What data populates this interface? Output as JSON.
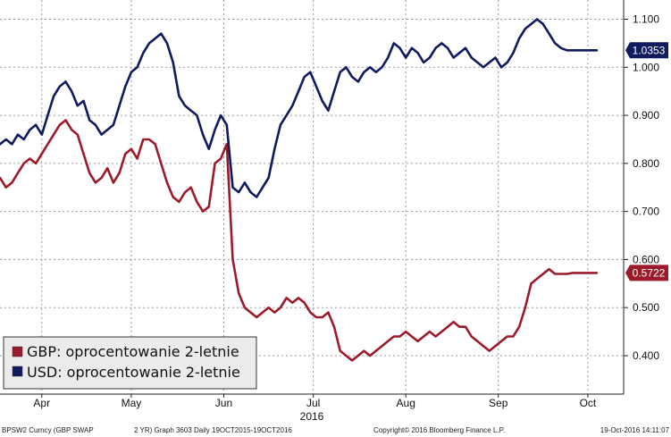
{
  "chart_data": {
    "type": "line",
    "ylim": [
      0.32,
      1.14
    ],
    "y_ticks": [
      "1.100",
      "1.000",
      "0.900",
      "0.800",
      "0.700",
      "0.600",
      "0.500",
      "0.400"
    ],
    "y_tick_values": [
      1.1,
      1.0,
      0.9,
      0.8,
      0.7,
      0.6,
      0.5,
      0.4
    ],
    "x_ticks": [
      "Apr",
      "May",
      "Jun",
      "Jul",
      "Aug",
      "Sep",
      "Oct"
    ],
    "x_tick_days": [
      14,
      44,
      75,
      105,
      136,
      167,
      197
    ],
    "x_year_label": "2016",
    "x_range_days": [
      0,
      209
    ],
    "grid": true,
    "legend_position": "bottom-left",
    "series": [
      {
        "name": "GBP: oprocentowanie 2-letnie",
        "color": "#9b1b2a",
        "last_value_label": "0.5722",
        "x": [
          0,
          2,
          4,
          6,
          8,
          10,
          12,
          14,
          16,
          18,
          20,
          22,
          24,
          26,
          28,
          30,
          32,
          34,
          36,
          38,
          40,
          42,
          44,
          46,
          48,
          50,
          52,
          54,
          56,
          58,
          60,
          62,
          64,
          66,
          68,
          70,
          72,
          74,
          76,
          78,
          80,
          82,
          84,
          86,
          88,
          90,
          92,
          94,
          96,
          98,
          100,
          102,
          104,
          106,
          108,
          110,
          112,
          114,
          116,
          118,
          120,
          122,
          124,
          126,
          128,
          130,
          132,
          134,
          136,
          138,
          140,
          142,
          144,
          146,
          148,
          150,
          152,
          154,
          156,
          158,
          160,
          162,
          164,
          166,
          168,
          170,
          172,
          174,
          176,
          178,
          180,
          182,
          184,
          186,
          188,
          190,
          192,
          194,
          196,
          198,
          200
        ],
        "y": [
          0.77,
          0.75,
          0.76,
          0.78,
          0.8,
          0.81,
          0.8,
          0.82,
          0.84,
          0.86,
          0.88,
          0.89,
          0.87,
          0.86,
          0.82,
          0.78,
          0.76,
          0.77,
          0.79,
          0.76,
          0.78,
          0.82,
          0.83,
          0.81,
          0.85,
          0.85,
          0.84,
          0.8,
          0.76,
          0.73,
          0.72,
          0.74,
          0.75,
          0.72,
          0.7,
          0.71,
          0.8,
          0.81,
          0.84,
          0.6,
          0.53,
          0.5,
          0.49,
          0.48,
          0.49,
          0.5,
          0.49,
          0.5,
          0.52,
          0.51,
          0.52,
          0.51,
          0.49,
          0.48,
          0.48,
          0.49,
          0.46,
          0.41,
          0.4,
          0.39,
          0.4,
          0.41,
          0.4,
          0.41,
          0.42,
          0.43,
          0.44,
          0.44,
          0.45,
          0.44,
          0.43,
          0.44,
          0.45,
          0.44,
          0.45,
          0.46,
          0.47,
          0.46,
          0.46,
          0.44,
          0.43,
          0.42,
          0.41,
          0.42,
          0.43,
          0.44,
          0.44,
          0.46,
          0.5,
          0.55,
          0.56,
          0.57,
          0.58,
          0.57,
          0.57,
          0.57,
          0.5722,
          0.5722,
          0.5722,
          0.5722,
          0.5722
        ]
      },
      {
        "name": "USD: oprocentowanie 2-letnie",
        "color": "#101a5e",
        "last_value_label": "1.0353",
        "x": [
          0,
          2,
          4,
          6,
          8,
          10,
          12,
          14,
          16,
          18,
          20,
          22,
          24,
          26,
          28,
          30,
          32,
          34,
          36,
          38,
          40,
          42,
          44,
          46,
          48,
          50,
          52,
          54,
          56,
          58,
          60,
          62,
          64,
          66,
          68,
          70,
          72,
          74,
          76,
          78,
          80,
          82,
          84,
          86,
          88,
          90,
          92,
          94,
          96,
          98,
          100,
          102,
          104,
          106,
          108,
          110,
          112,
          114,
          116,
          118,
          120,
          122,
          124,
          126,
          128,
          130,
          132,
          134,
          136,
          138,
          140,
          142,
          144,
          146,
          148,
          150,
          152,
          154,
          156,
          158,
          160,
          162,
          164,
          166,
          168,
          170,
          172,
          174,
          176,
          178,
          180,
          182,
          184,
          186,
          188,
          190,
          192,
          194,
          196,
          198,
          200
        ],
        "y": [
          0.84,
          0.85,
          0.84,
          0.86,
          0.85,
          0.87,
          0.88,
          0.86,
          0.9,
          0.94,
          0.96,
          0.97,
          0.95,
          0.92,
          0.93,
          0.89,
          0.88,
          0.86,
          0.87,
          0.88,
          0.92,
          0.96,
          0.99,
          1.0,
          1.03,
          1.05,
          1.06,
          1.07,
          1.05,
          1.01,
          0.94,
          0.92,
          0.91,
          0.9,
          0.86,
          0.83,
          0.87,
          0.9,
          0.88,
          0.75,
          0.74,
          0.76,
          0.74,
          0.73,
          0.75,
          0.77,
          0.83,
          0.88,
          0.9,
          0.92,
          0.95,
          0.98,
          0.99,
          0.96,
          0.93,
          0.91,
          0.95,
          0.99,
          1.0,
          0.98,
          0.97,
          0.99,
          1.0,
          0.99,
          1.0,
          1.02,
          1.05,
          1.04,
          1.02,
          1.04,
          1.03,
          1.01,
          1.02,
          1.04,
          1.05,
          1.04,
          1.02,
          1.03,
          1.04,
          1.02,
          1.01,
          1.0,
          1.01,
          1.02,
          1.0,
          1.01,
          1.03,
          1.06,
          1.08,
          1.09,
          1.1,
          1.09,
          1.07,
          1.05,
          1.04,
          1.0353,
          1.0353,
          1.0353,
          1.0353,
          1.0353,
          1.0353
        ]
      }
    ]
  },
  "footer": {
    "ticker": "BPSW2 Curncy (GBP SWAP",
    "graph_info": "2 YR) Graph 3603  Daily 19OCT2015-19OCT2016",
    "copyright": "Copyright© 2016 Bloomberg Finance L.P.",
    "timestamp": "19-Oct-2016 14:11:07"
  }
}
